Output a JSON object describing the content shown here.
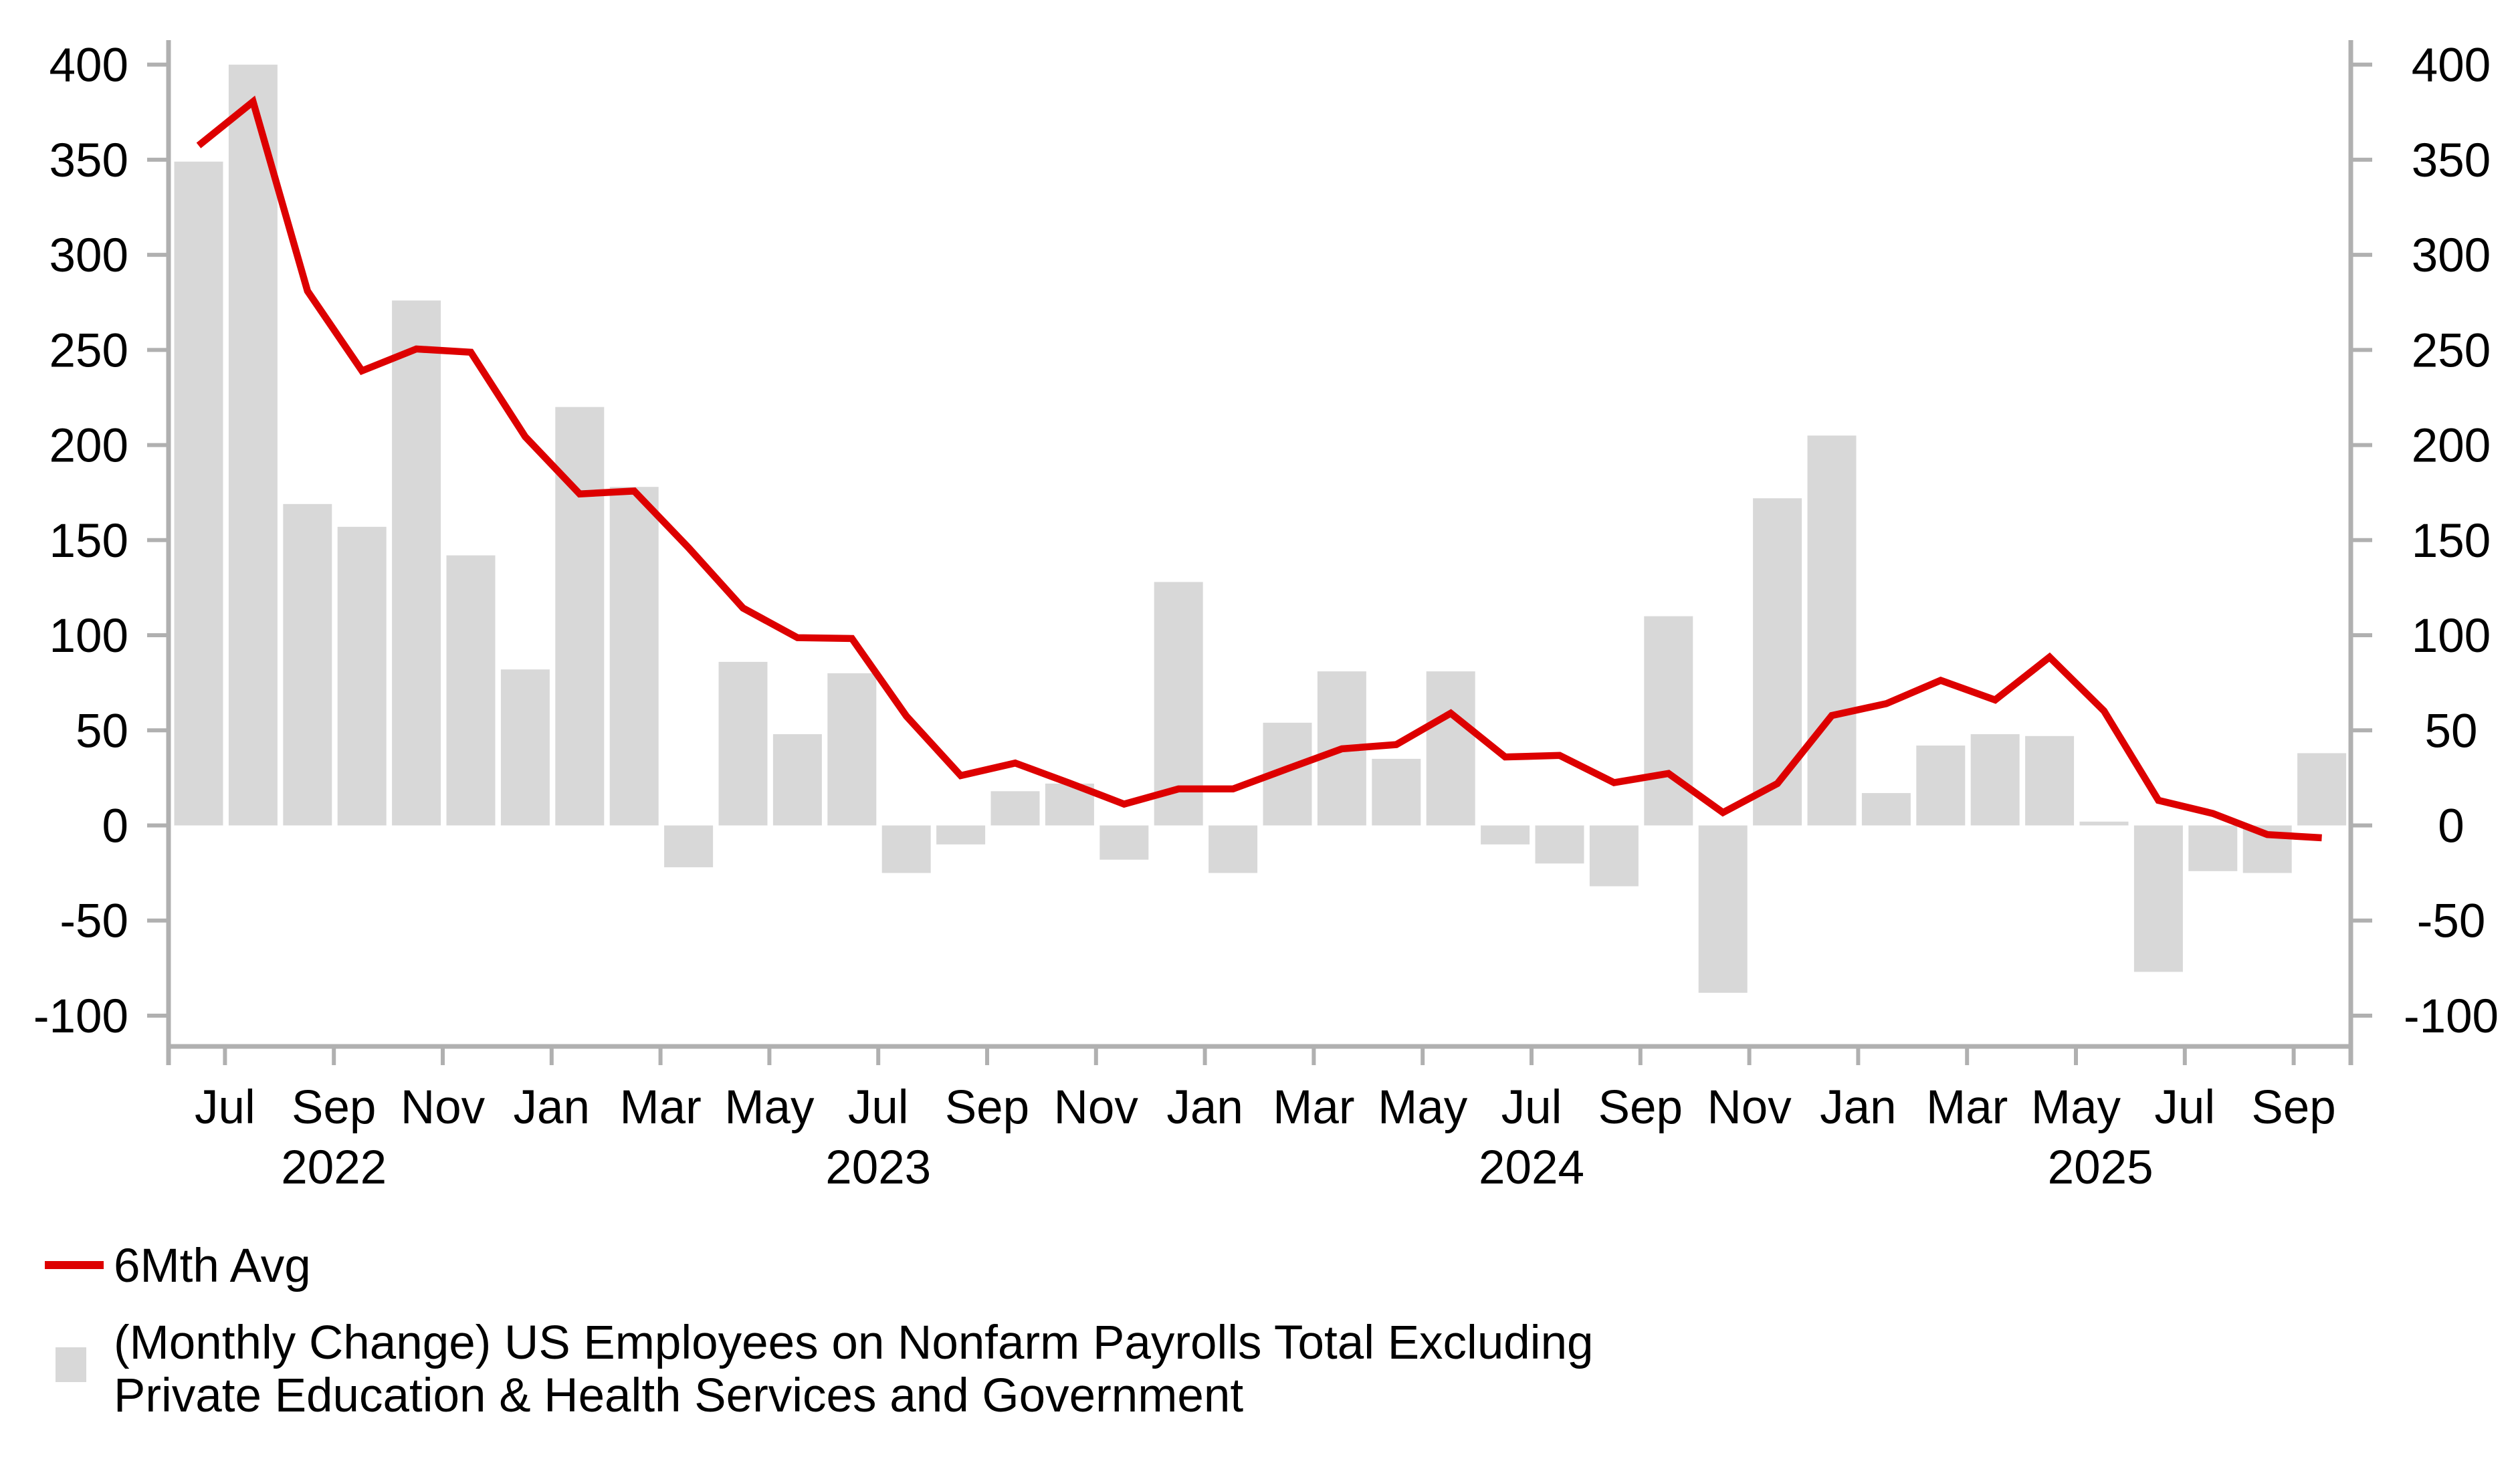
{
  "legend": {
    "line_label": "6Mth Avg",
    "bar_label_line1": "(Monthly Change) US Employees on Nonfarm Payrolls Total Excluding",
    "bar_label_line2": "Private Education & Health Services and Government"
  },
  "chart_data": {
    "type": "bar",
    "title": "",
    "xlabel": "",
    "ylabel": "",
    "grid": false,
    "legend_position": "bottom-left",
    "ylim": [
      -117,
      413
    ],
    "y_ticks": [
      400,
      350,
      300,
      250,
      200,
      150,
      100,
      50,
      0,
      -50,
      -100
    ],
    "y_axis_sides": [
      "left",
      "right"
    ],
    "categories": [
      "Jun 2022",
      "Jul 2022",
      "Aug 2022",
      "Sep 2022",
      "Oct 2022",
      "Nov 2022",
      "Dec 2022",
      "Jan 2023",
      "Feb 2023",
      "Mar 2023",
      "Apr 2023",
      "May 2023",
      "Jun 2023",
      "Jul 2023",
      "Aug 2023",
      "Sep 2023",
      "Oct 2023",
      "Nov 2023",
      "Dec 2023",
      "Jan 2024",
      "Feb 2024",
      "Mar 2024",
      "Apr 2024",
      "May 2024",
      "Jun 2024",
      "Jul 2024",
      "Aug 2024",
      "Sep 2024",
      "Oct 2024",
      "Nov 2024",
      "Dec 2024",
      "Jan 2025",
      "Feb 2025",
      "Mar 2025",
      "Apr 2025",
      "May 2025",
      "Jun 2025",
      "Jul 2025",
      "Aug 2025",
      "Sep 2025"
    ],
    "series": [
      {
        "name": "(Monthly Change) US Employees on Nonfarm Payrolls Total Excluding Private Education & Health Services and Government",
        "type": "bar",
        "color": "#d8d8d8",
        "values": [
          349,
          400,
          169,
          157,
          276,
          142,
          82,
          220,
          178,
          -22,
          86,
          48,
          80,
          -25,
          -10,
          18,
          22,
          -18,
          128,
          -25,
          54,
          81,
          35,
          81,
          -10,
          -20,
          -32,
          110,
          -88,
          172,
          205,
          17,
          42,
          48,
          47,
          2,
          -77,
          -24,
          -25,
          38
        ]
      },
      {
        "name": "6Mth Avg",
        "type": "line",
        "color": "#dd0000",
        "values": [
          357.5,
          380.5,
          281,
          239,
          250.5,
          248.8,
          204.3,
          174.3,
          175.8,
          146,
          114.3,
          98.7,
          98.3,
          57.5,
          26.2,
          32.8,
          22.2,
          11.2,
          19.2,
          19.2,
          29.8,
          40.3,
          42.5,
          59,
          36,
          36.8,
          22.5,
          27.3,
          6.8,
          22,
          57.8,
          64,
          76.3,
          66,
          88.5,
          60.2,
          13.2,
          6.3,
          -4.8,
          -6.5
        ]
      }
    ],
    "x_ticks": [
      {
        "index": 1,
        "label": "Jul"
      },
      {
        "index": 3,
        "label": "Sep"
      },
      {
        "index": 5,
        "label": "Nov"
      },
      {
        "index": 7,
        "label": "Jan"
      },
      {
        "index": 9,
        "label": "Mar"
      },
      {
        "index": 11,
        "label": "May"
      },
      {
        "index": 13,
        "label": "Jul"
      },
      {
        "index": 15,
        "label": "Sep"
      },
      {
        "index": 17,
        "label": "Nov"
      },
      {
        "index": 19,
        "label": "Jan"
      },
      {
        "index": 21,
        "label": "Mar"
      },
      {
        "index": 23,
        "label": "May"
      },
      {
        "index": 25,
        "label": "Jul"
      },
      {
        "index": 27,
        "label": "Sep"
      },
      {
        "index": 29,
        "label": "Nov"
      },
      {
        "index": 31,
        "label": "Jan"
      },
      {
        "index": 33,
        "label": "Mar"
      },
      {
        "index": 35,
        "label": "May"
      },
      {
        "index": 37,
        "label": "Jul"
      },
      {
        "index": 39,
        "label": "Sep"
      }
    ],
    "year_labels": [
      {
        "label": "2022",
        "month_index": 3
      },
      {
        "label": "2023",
        "month_index": 13
      },
      {
        "label": "2024",
        "month_index": 25
      },
      {
        "label": "2025",
        "month_index": 35.45
      }
    ],
    "colors": {
      "bar": "#d8d8d8",
      "line": "#dd0000",
      "axis": "#b0b0b0",
      "text": "#000000"
    }
  }
}
